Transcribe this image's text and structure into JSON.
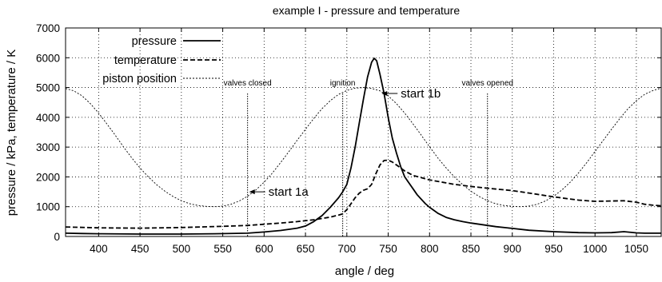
{
  "chart_data": {
    "type": "line",
    "title": "example I - pressure and temperature",
    "xlabel": "angle / deg",
    "ylabel": "pressure / kPa, temperature / K",
    "xlim": [
      360,
      1080
    ],
    "ylim": [
      0,
      7000
    ],
    "xticks": [
      400,
      450,
      500,
      550,
      600,
      650,
      700,
      750,
      800,
      850,
      900,
      950,
      1000,
      1050
    ],
    "yticks": [
      0,
      1000,
      2000,
      3000,
      4000,
      5000,
      6000,
      7000
    ],
    "grid": true,
    "legend_position": "top-left",
    "series": [
      {
        "name": "pressure",
        "style": "solid",
        "points": [
          [
            360,
            110
          ],
          [
            380,
            100
          ],
          [
            400,
            90
          ],
          [
            450,
            80
          ],
          [
            500,
            80
          ],
          [
            540,
            90
          ],
          [
            580,
            110
          ],
          [
            600,
            150
          ],
          [
            620,
            200
          ],
          [
            640,
            280
          ],
          [
            650,
            350
          ],
          [
            660,
            500
          ],
          [
            670,
            700
          ],
          [
            680,
            980
          ],
          [
            690,
            1300
          ],
          [
            695,
            1500
          ],
          [
            700,
            1750
          ],
          [
            705,
            2300
          ],
          [
            710,
            3000
          ],
          [
            715,
            3800
          ],
          [
            720,
            4600
          ],
          [
            725,
            5350
          ],
          [
            730,
            5850
          ],
          [
            733,
            5980
          ],
          [
            736,
            5900
          ],
          [
            740,
            5450
          ],
          [
            745,
            4800
          ],
          [
            750,
            4000
          ],
          [
            755,
            3300
          ],
          [
            760,
            2800
          ],
          [
            765,
            2350
          ],
          [
            770,
            2000
          ],
          [
            775,
            1800
          ],
          [
            780,
            1600
          ],
          [
            785,
            1400
          ],
          [
            790,
            1250
          ],
          [
            795,
            1100
          ],
          [
            800,
            980
          ],
          [
            810,
            780
          ],
          [
            820,
            640
          ],
          [
            830,
            560
          ],
          [
            840,
            500
          ],
          [
            850,
            450
          ],
          [
            860,
            410
          ],
          [
            870,
            370
          ],
          [
            880,
            330
          ],
          [
            900,
            270
          ],
          [
            920,
            210
          ],
          [
            950,
            160
          ],
          [
            980,
            130
          ],
          [
            1000,
            120
          ],
          [
            1020,
            130
          ],
          [
            1035,
            160
          ],
          [
            1050,
            120
          ],
          [
            1060,
            110
          ],
          [
            1070,
            110
          ],
          [
            1080,
            110
          ]
        ]
      },
      {
        "name": "temperature",
        "style": "dashed",
        "points": [
          [
            360,
            320
          ],
          [
            400,
            290
          ],
          [
            450,
            280
          ],
          [
            500,
            300
          ],
          [
            550,
            340
          ],
          [
            580,
            370
          ],
          [
            600,
            410
          ],
          [
            620,
            450
          ],
          [
            640,
            500
          ],
          [
            660,
            560
          ],
          [
            680,
            650
          ],
          [
            690,
            720
          ],
          [
            695,
            760
          ],
          [
            700,
            900
          ],
          [
            705,
            1100
          ],
          [
            710,
            1300
          ],
          [
            715,
            1450
          ],
          [
            720,
            1550
          ],
          [
            725,
            1600
          ],
          [
            730,
            1750
          ],
          [
            735,
            2100
          ],
          [
            740,
            2400
          ],
          [
            745,
            2550
          ],
          [
            750,
            2560
          ],
          [
            755,
            2500
          ],
          [
            760,
            2400
          ],
          [
            765,
            2300
          ],
          [
            770,
            2200
          ],
          [
            780,
            2050
          ],
          [
            800,
            1900
          ],
          [
            830,
            1750
          ],
          [
            850,
            1680
          ],
          [
            870,
            1620
          ],
          [
            900,
            1540
          ],
          [
            920,
            1460
          ],
          [
            950,
            1330
          ],
          [
            980,
            1220
          ],
          [
            1000,
            1180
          ],
          [
            1020,
            1190
          ],
          [
            1035,
            1200
          ],
          [
            1050,
            1150
          ],
          [
            1060,
            1080
          ],
          [
            1070,
            1050
          ],
          [
            1080,
            1030
          ]
        ]
      },
      {
        "name": "piston position",
        "style": "dotted",
        "points": [
          [
            360,
            4970
          ],
          [
            370,
            4890
          ],
          [
            380,
            4720
          ],
          [
            390,
            4460
          ],
          [
            400,
            4140
          ],
          [
            410,
            3780
          ],
          [
            420,
            3400
          ],
          [
            430,
            3010
          ],
          [
            440,
            2640
          ],
          [
            450,
            2300
          ],
          [
            460,
            2000
          ],
          [
            470,
            1740
          ],
          [
            480,
            1520
          ],
          [
            490,
            1340
          ],
          [
            500,
            1200
          ],
          [
            510,
            1100
          ],
          [
            520,
            1040
          ],
          [
            530,
            1010
          ],
          [
            540,
            1000
          ],
          [
            550,
            1020
          ],
          [
            560,
            1080
          ],
          [
            570,
            1190
          ],
          [
            580,
            1350
          ],
          [
            590,
            1560
          ],
          [
            600,
            1820
          ],
          [
            610,
            2130
          ],
          [
            620,
            2480
          ],
          [
            630,
            2850
          ],
          [
            640,
            3230
          ],
          [
            650,
            3600
          ],
          [
            660,
            3960
          ],
          [
            670,
            4290
          ],
          [
            680,
            4560
          ],
          [
            690,
            4770
          ],
          [
            700,
            4900
          ],
          [
            710,
            4980
          ],
          [
            720,
            5000
          ],
          [
            730,
            4970
          ],
          [
            740,
            4890
          ],
          [
            750,
            4720
          ],
          [
            760,
            4460
          ],
          [
            770,
            4140
          ],
          [
            780,
            3780
          ],
          [
            790,
            3400
          ],
          [
            800,
            3010
          ],
          [
            810,
            2640
          ],
          [
            820,
            2300
          ],
          [
            830,
            2000
          ],
          [
            840,
            1740
          ],
          [
            850,
            1520
          ],
          [
            860,
            1340
          ],
          [
            870,
            1200
          ],
          [
            880,
            1100
          ],
          [
            890,
            1040
          ],
          [
            900,
            1010
          ],
          [
            910,
            1000
          ],
          [
            920,
            1020
          ],
          [
            930,
            1080
          ],
          [
            940,
            1190
          ],
          [
            950,
            1350
          ],
          [
            960,
            1560
          ],
          [
            970,
            1820
          ],
          [
            980,
            2130
          ],
          [
            990,
            2480
          ],
          [
            1000,
            2850
          ],
          [
            1010,
            3230
          ],
          [
            1020,
            3600
          ],
          [
            1030,
            3960
          ],
          [
            1040,
            4290
          ],
          [
            1050,
            4560
          ],
          [
            1060,
            4770
          ],
          [
            1070,
            4900
          ],
          [
            1080,
            4980
          ]
        ]
      }
    ],
    "markers": [
      {
        "label": "valves closed",
        "x": 580
      },
      {
        "label": "ignition",
        "x": 695
      },
      {
        "label": "valves opened",
        "x": 870
      }
    ],
    "annotations": [
      {
        "text": "start 1a",
        "x": 582,
        "y": 1500
      },
      {
        "text": "start 1b",
        "x": 742,
        "y": 4800
      }
    ]
  }
}
